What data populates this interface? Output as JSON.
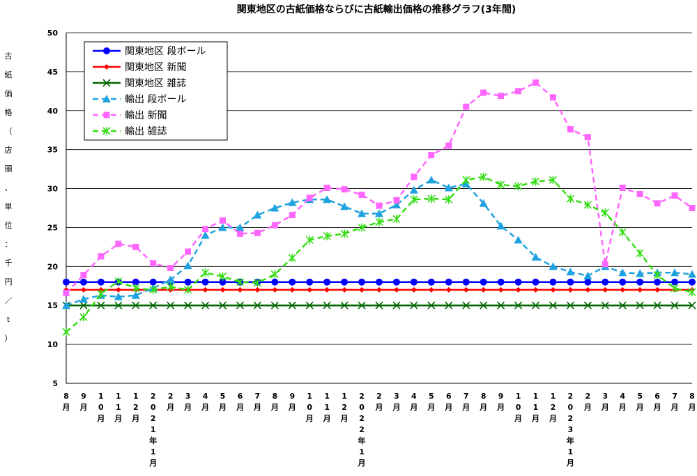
{
  "chart_data": {
    "type": "line",
    "title": "関東地区の古紙価格ならびに古紙輸出価格の推移グラフ(3年間)",
    "y_label": "古紙価格（店頭、単位：千円／t）",
    "categories": [
      "8月",
      "9月",
      "10月",
      "11月",
      "12月",
      "2021年1月",
      "2月",
      "3月",
      "4月",
      "5月",
      "6月",
      "7月",
      "8月",
      "9月",
      "10月",
      "11月",
      "12月",
      "2022年1月",
      "2月",
      "3月",
      "4月",
      "5月",
      "6月",
      "7月",
      "8月",
      "9月",
      "10月",
      "11月",
      "12月",
      "2023年1月",
      "2月",
      "3月",
      "4月",
      "5月",
      "6月",
      "7月",
      "8月"
    ],
    "ylim": [
      5,
      50
    ],
    "yticks": [
      5,
      10,
      15,
      20,
      25,
      30,
      35,
      40,
      45,
      50
    ],
    "grid": true,
    "legend": "upper left",
    "series": [
      {
        "name": "関東地区 段ボール",
        "color": "#0000ff",
        "marker": "circle",
        "dash": false,
        "values": [
          18,
          18,
          18,
          18,
          18,
          18,
          18,
          18,
          18,
          18,
          18,
          18,
          18,
          18,
          18,
          18,
          18,
          18,
          18,
          18,
          18,
          18,
          18,
          18,
          18,
          18,
          18,
          18,
          18,
          18,
          18,
          18,
          18,
          18,
          18,
          18,
          18
        ]
      },
      {
        "name": "関東地区 新聞",
        "color": "#ff0000",
        "marker": "diamond",
        "dash": false,
        "values": [
          17,
          17,
          17,
          17,
          17,
          17,
          17,
          17,
          17,
          17,
          17,
          17,
          17,
          17,
          17,
          17,
          17,
          17,
          17,
          17,
          17,
          17,
          17,
          17,
          17,
          17,
          17,
          17,
          17,
          17,
          17,
          17,
          17,
          17,
          17,
          17,
          17
        ]
      },
      {
        "name": "関東地区 雑誌",
        "color": "#006400",
        "marker": "x",
        "dash": false,
        "values": [
          15,
          15,
          15,
          15,
          15,
          15,
          15,
          15,
          15,
          15,
          15,
          15,
          15,
          15,
          15,
          15,
          15,
          15,
          15,
          15,
          15,
          15,
          15,
          15,
          15,
          15,
          15,
          15,
          15,
          15,
          15,
          15,
          15,
          15,
          15,
          15,
          15
        ]
      },
      {
        "name": "輸出 段ボール",
        "color": "#1fa2e0",
        "marker": "triangle",
        "dash": true,
        "values": [
          15,
          15.8,
          16.3,
          16.1,
          16.3,
          17.2,
          18.3,
          20.1,
          24.0,
          25.0,
          25.0,
          26.6,
          27.5,
          28.2,
          28.6,
          28.6,
          27.7,
          26.8,
          26.8,
          27.9,
          29.8,
          31.1,
          30.1,
          30.6,
          28.1,
          25.2,
          23.4,
          21.2,
          20.0,
          19.3,
          18.8,
          20.0,
          19.2,
          19.1,
          19.2,
          19.2,
          19.0
        ]
      },
      {
        "name": "輸出 新聞",
        "color": "#ff66ff",
        "marker": "square",
        "dash": true,
        "values": [
          16.6,
          18.9,
          21.3,
          22.9,
          22.5,
          20.4,
          19.8,
          21.9,
          24.8,
          25.9,
          24.2,
          24.3,
          25.3,
          26.6,
          28.8,
          30.1,
          29.9,
          29.2,
          27.8,
          28.5,
          31.5,
          34.3,
          35.5,
          40.5,
          42.3,
          41.9,
          42.5,
          43.6,
          41.7,
          37.6,
          36.6,
          20.3,
          30.1,
          29.3,
          28.1,
          29.1,
          27.5
        ]
      },
      {
        "name": "輸出 雑誌",
        "color": "#33dd11",
        "marker": "star",
        "dash": true,
        "values": [
          11.6,
          13.5,
          16.5,
          18.1,
          17.2,
          17.0,
          17.4,
          17.0,
          19.2,
          18.7,
          18.0,
          17.9,
          19.0,
          21.1,
          23.4,
          23.9,
          24.2,
          25.0,
          25.7,
          26.1,
          28.6,
          28.7,
          28.6,
          31.1,
          31.5,
          30.5,
          30.3,
          30.9,
          31.1,
          28.7,
          27.9,
          26.9,
          24.4,
          21.7,
          18.9,
          17.2,
          16.7
        ]
      }
    ]
  }
}
